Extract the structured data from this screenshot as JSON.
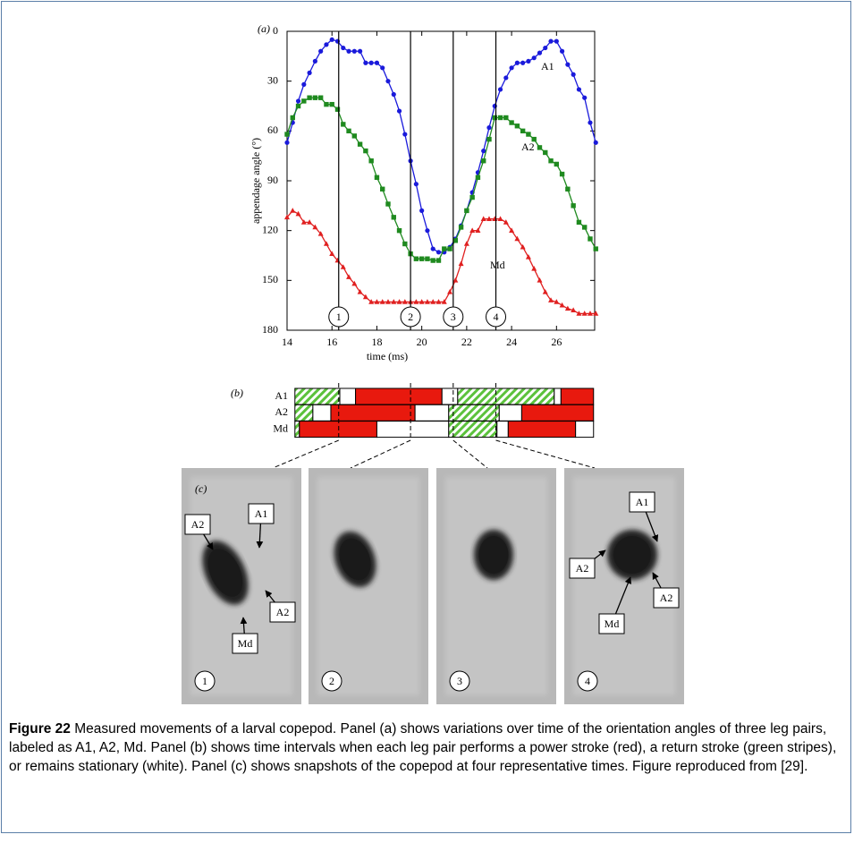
{
  "chart_data": {
    "type": "line",
    "panel_label": "(a)",
    "xlabel": "time (ms)",
    "ylabel": "appendage angle (°)",
    "xlim": [
      14,
      27.7
    ],
    "ylim": [
      0,
      180
    ],
    "y_reversed": true,
    "xticks": [
      14,
      16,
      18,
      20,
      22,
      24,
      26
    ],
    "yticks": [
      0,
      30,
      60,
      90,
      120,
      150,
      180
    ],
    "x": [
      14,
      14.25,
      14.5,
      14.75,
      15,
      15.25,
      15.5,
      15.75,
      16,
      16.25,
      16.5,
      16.75,
      17,
      17.25,
      17.5,
      17.75,
      18,
      18.25,
      18.5,
      18.75,
      19,
      19.25,
      19.5,
      19.75,
      20,
      20.25,
      20.5,
      20.75,
      21,
      21.25,
      21.5,
      21.75,
      22,
      22.25,
      22.5,
      22.75,
      23,
      23.25,
      23.5,
      23.75,
      24,
      24.25,
      24.5,
      24.75,
      25,
      25.25,
      25.5,
      25.75,
      26,
      26.25,
      26.5,
      26.75,
      27,
      27.25,
      27.5,
      27.75
    ],
    "series": [
      {
        "name": "A1",
        "color": "#1a1adb",
        "marker": "circle",
        "values": [
          67,
          55,
          42,
          32,
          25,
          18,
          12,
          8,
          5,
          6,
          10,
          12,
          12,
          12,
          19,
          19,
          19,
          22,
          30,
          38,
          48,
          62,
          78,
          92,
          108,
          120,
          131,
          133,
          133,
          130,
          125,
          117,
          108,
          97,
          85,
          72,
          58,
          45,
          35,
          28,
          22,
          19,
          19,
          18,
          16,
          13,
          10,
          6,
          6,
          12,
          20,
          26,
          35,
          40,
          55,
          67
        ]
      },
      {
        "name": "A2",
        "color": "#1f8a1f",
        "marker": "square",
        "values": [
          62,
          52,
          45,
          42,
          40,
          40,
          40,
          44,
          44,
          47,
          56,
          60,
          63,
          68,
          72,
          78,
          88,
          95,
          104,
          112,
          120,
          128,
          134,
          137,
          137,
          137,
          138,
          138,
          131,
          131,
          126,
          118,
          108,
          100,
          88,
          78,
          65,
          52,
          52,
          52,
          55,
          57,
          60,
          62,
          65,
          70,
          73,
          78,
          80,
          86,
          95,
          105,
          115,
          118,
          125,
          131
        ]
      },
      {
        "name": "Md",
        "color": "#e02020",
        "marker": "triangle",
        "values": [
          112,
          108,
          110,
          115,
          115,
          118,
          122,
          128,
          134,
          138,
          142,
          148,
          152,
          157,
          160,
          163,
          163,
          163,
          163,
          163,
          163,
          163,
          163,
          163,
          163,
          163,
          163,
          163,
          163,
          157,
          150,
          140,
          128,
          120,
          120,
          113,
          113,
          113,
          113,
          115,
          120,
          125,
          130,
          136,
          143,
          150,
          157,
          162,
          163,
          165,
          167,
          168,
          170,
          170,
          170,
          170
        ]
      }
    ],
    "markers": [
      {
        "x": 16.3,
        "label": "1"
      },
      {
        "x": 19.5,
        "label": "2"
      },
      {
        "x": 21.4,
        "label": "3"
      },
      {
        "x": 23.3,
        "label": "4"
      }
    ]
  },
  "timeline": {
    "panel_label": "(b)",
    "rows": [
      {
        "name": "A1",
        "segments": [
          {
            "state": "return",
            "start": 14.35,
            "end": 16.35
          },
          {
            "state": "stationary",
            "start": 16.35,
            "end": 17.05
          },
          {
            "state": "power",
            "start": 17.05,
            "end": 20.9
          },
          {
            "state": "stationary",
            "start": 20.9,
            "end": 21.6
          },
          {
            "state": "return",
            "start": 21.6,
            "end": 25.9
          },
          {
            "state": "stationary",
            "start": 25.9,
            "end": 26.2
          },
          {
            "state": "power",
            "start": 26.2,
            "end": 27.65
          }
        ]
      },
      {
        "name": "A2",
        "segments": [
          {
            "state": "return",
            "start": 14.35,
            "end": 15.15
          },
          {
            "state": "stationary",
            "start": 15.15,
            "end": 15.95
          },
          {
            "state": "power",
            "start": 15.95,
            "end": 19.7
          },
          {
            "state": "stationary",
            "start": 19.7,
            "end": 21.2
          },
          {
            "state": "return",
            "start": 21.2,
            "end": 23.45
          },
          {
            "state": "stationary",
            "start": 23.45,
            "end": 24.45
          },
          {
            "state": "power",
            "start": 24.45,
            "end": 27.65
          }
        ]
      },
      {
        "name": "Md",
        "segments": [
          {
            "state": "return",
            "start": 14.35,
            "end": 14.55
          },
          {
            "state": "power",
            "start": 14.55,
            "end": 18.0
          },
          {
            "state": "stationary",
            "start": 18.0,
            "end": 21.2
          },
          {
            "state": "return",
            "start": 21.2,
            "end": 23.35
          },
          {
            "state": "stationary",
            "start": 23.35,
            "end": 23.85
          },
          {
            "state": "power",
            "start": 23.85,
            "end": 26.85
          },
          {
            "state": "stationary",
            "start": 26.85,
            "end": 27.65
          }
        ]
      }
    ]
  },
  "photos": {
    "panel_label": "(c)",
    "frames": [
      {
        "label": "1",
        "annotations": [
          "A2",
          "A1",
          "A2",
          "Md"
        ]
      },
      {
        "label": "2",
        "annotations": []
      },
      {
        "label": "3",
        "annotations": []
      },
      {
        "label": "4",
        "annotations": [
          "A1",
          "A2",
          "A2",
          "Md"
        ]
      }
    ]
  },
  "caption": {
    "label": "Figure 22",
    "text": "Measured movements of a larval copepod. Panel (a) shows variations over time of the orientation angles of three leg pairs, labeled as A1, A2, Md. Panel (b) shows time intervals when each leg pair performs a power stroke (red), a return stroke (green stripes), or remains stationary (white). Panel (c) shows snapshots of the copepod at four representative times. Figure reproduced from [29]."
  }
}
